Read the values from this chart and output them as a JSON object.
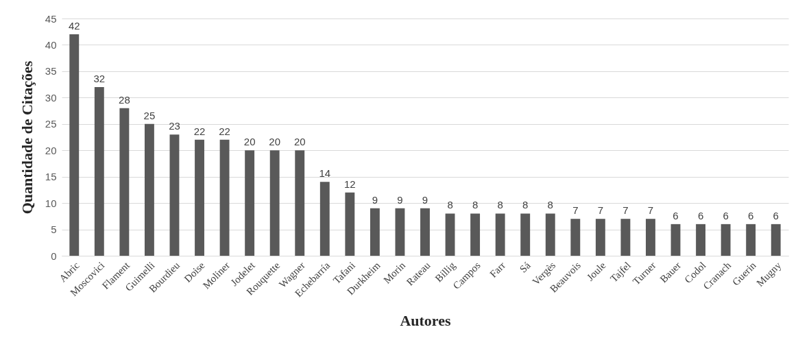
{
  "chart_data": {
    "type": "bar",
    "xlabel": "Autores",
    "ylabel": "Quantidade de Citações",
    "categories": [
      "Abric",
      "Moscovici",
      "Flament",
      "Guimelli",
      "Bourdieu",
      "Doise",
      "Moliner",
      "Jodelet",
      "Rouquette",
      "Wagner",
      "Echebarría",
      "Tafani",
      "Durkheim",
      "Morin",
      "Rateau",
      "Billig",
      "Campos",
      "Farr",
      "Sá",
      "Vergès",
      "Beauvois",
      "Joule",
      "Tajfel",
      "Turner",
      "Bauer",
      "Codol",
      "Cranach",
      "Guerin",
      "Mugny"
    ],
    "values": [
      42,
      32,
      28,
      25,
      23,
      22,
      22,
      20,
      20,
      20,
      14,
      12,
      9,
      9,
      9,
      8,
      8,
      8,
      8,
      8,
      7,
      7,
      7,
      7,
      6,
      6,
      6,
      6,
      6
    ],
    "color": "#595959",
    "ylim": [
      0,
      45
    ],
    "yticks": [
      0,
      5,
      10,
      15,
      20,
      25,
      30,
      35,
      40,
      45
    ],
    "grid": "y",
    "data_labels": true
  }
}
